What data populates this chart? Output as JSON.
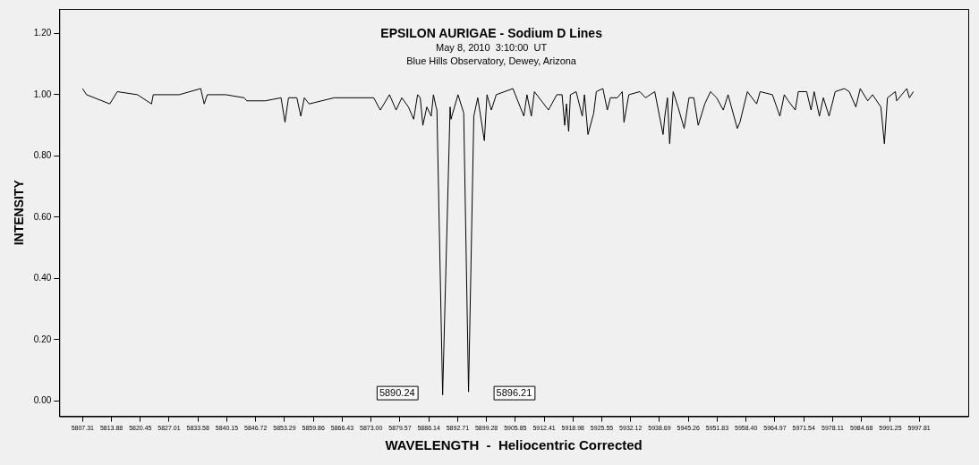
{
  "chart_data": {
    "type": "line",
    "title": "EPSILON AURIGAE - Sodium D Lines",
    "subtitle": "May 8, 2010  3:10:00  UT\nBlue Hills Observatory, Dewey, Arizona",
    "xlabel": "WAVELENGTH  -  Heliocentric Corrected",
    "ylabel": "INTENSITY",
    "marker": "none",
    "line_style": "solid",
    "legend": false,
    "xlim": [
      5802,
      6009
    ],
    "ylim": [
      -0.05,
      1.28
    ],
    "xticks": [
      5807.31,
      5813.88,
      5820.45,
      5827.01,
      5833.58,
      5840.15,
      5846.72,
      5853.29,
      5859.86,
      5866.43,
      {
        "value": 5873.0,
        "label": "5873.00"
      },
      5879.57,
      5886.14,
      5892.71,
      5899.28,
      5905.85,
      5912.41,
      5918.98,
      5925.55,
      5932.12,
      5938.69,
      5945.26,
      5951.83,
      {
        "value": 5958.4,
        "label": "5958.40"
      },
      5964.97,
      5971.54,
      5978.11,
      5984.68,
      5991.25,
      5997.81
    ],
    "yticks": [
      {
        "value": 0,
        "label": "0.00"
      },
      {
        "value": 0.2,
        "label": "0.20"
      },
      {
        "value": 0.4,
        "label": "0.40"
      },
      {
        "value": 0.6,
        "label": "0.60"
      },
      {
        "value": 0.8,
        "label": "0.80"
      },
      {
        "value": 1.0,
        "label": "1.00"
      },
      {
        "value": 1.2,
        "label": "1.20"
      }
    ],
    "annotations": [
      "5890.24",
      "5896.21"
    ],
    "series": [
      {
        "color": "#000000",
        "x": [
          5807.3,
          5808.2,
          5813.5,
          5815.2,
          5819.8,
          5823.0,
          5823.4,
          5829.3,
          5834.2,
          5835.0,
          5835.7,
          5839.9,
          5844.1,
          5844.7,
          5848.9,
          5852.5,
          5853.4,
          5854.2,
          5856.1,
          5857.0,
          5857.8,
          5858.9,
          5864.6,
          5869.4,
          5873.6,
          5875.1,
          5877.2,
          5878.7,
          5880.0,
          5881.5,
          5882.7,
          5883.6,
          5884.2,
          5884.8,
          5885.7,
          5886.7,
          5887.2,
          5887.8,
          5888.0,
          5889.3,
          5891.0,
          5891.2,
          5892.8,
          5894.1,
          5895.2,
          5896.4,
          5897.3,
          5898.8,
          5899.4,
          5900.4,
          5901.5,
          5905.3,
          5907.8,
          5908.5,
          5909.5,
          5910.2,
          5913.4,
          5915.3,
          5916.5,
          5917.1,
          5917.5,
          5918.0,
          5918.4,
          5919.7,
          5921.1,
          5921.6,
          5922.4,
          5923.7,
          5924.3,
          5925.8,
          5926.8,
          5927.5,
          5929.1,
          5930.2,
          5930.6,
          5931.7,
          5934.2,
          5935.5,
          5937.6,
          5939.5,
          5939.9,
          5940.5,
          5941.0,
          5941.8,
          5942.9,
          5944.3,
          5945.4,
          5946.5,
          5947.5,
          5949.0,
          5950.3,
          5951.7,
          5953.2,
          5954.3,
          5956.4,
          5957.0,
          5958.7,
          5960.8,
          5961.6,
          5964.4,
          5966.1,
          5967.1,
          5968.0,
          5969.6,
          5970.3,
          5972.2,
          5973.2,
          5973.9,
          5975.1,
          5976.0,
          5977.3,
          5978.7,
          5980.8,
          5981.9,
          5983.4,
          5984.4,
          5986.1,
          5987.2,
          5989.1,
          5989.9,
          5990.6,
          5992.4,
          5992.7,
          5995.0,
          5995.6,
          5996.5
        ],
        "values": [
          1.02,
          1.0,
          0.97,
          1.01,
          1.0,
          0.97,
          1.0,
          1.0,
          1.02,
          0.97,
          1.0,
          1.0,
          0.99,
          0.98,
          0.98,
          0.99,
          0.91,
          0.99,
          0.99,
          0.93,
          0.99,
          0.97,
          0.99,
          0.99,
          0.99,
          0.95,
          1.0,
          0.95,
          0.99,
          0.96,
          0.92,
          1.0,
          0.99,
          0.9,
          0.96,
          0.93,
          1.0,
          0.96,
          0.95,
          0.02,
          0.96,
          0.92,
          1.0,
          0.94,
          0.03,
          0.93,
          0.99,
          0.85,
          1.0,
          0.95,
          1.0,
          1.02,
          0.93,
          1.0,
          0.93,
          1.01,
          0.95,
          1.0,
          1.0,
          0.9,
          0.97,
          0.88,
          1.0,
          1.01,
          0.93,
          1.0,
          0.87,
          0.94,
          1.01,
          1.02,
          0.95,
          0.99,
          0.99,
          1.01,
          0.91,
          1.0,
          1.01,
          0.99,
          1.01,
          0.87,
          0.93,
          0.99,
          0.84,
          1.01,
          0.96,
          0.89,
          0.99,
          0.99,
          0.9,
          0.97,
          1.01,
          0.99,
          0.95,
          1.0,
          0.89,
          0.91,
          1.01,
          0.97,
          1.01,
          1.0,
          0.93,
          1.0,
          0.98,
          0.95,
          1.01,
          1.01,
          0.95,
          1.01,
          0.93,
          0.99,
          0.93,
          1.01,
          1.02,
          1.01,
          0.96,
          1.02,
          0.98,
          1.0,
          0.96,
          0.84,
          0.99,
          1.01,
          0.98,
          1.02,
          0.99,
          1.01
        ]
      }
    ]
  }
}
